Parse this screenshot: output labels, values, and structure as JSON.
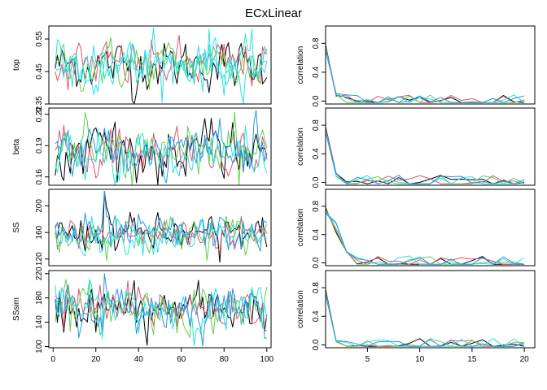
{
  "title": "ECxLinear",
  "colors": {
    "chain1": "#000000",
    "chain2": "#DF536B",
    "chain3": "#61D04F",
    "chain4": "#28E2E5",
    "chain5": "#2297E6"
  },
  "chart_data": [
    {
      "type": "line",
      "panel": "trace",
      "ylabel": "top",
      "ylim": [
        0.35,
        0.59
      ],
      "yticks": [
        0.35,
        0.45,
        0.55
      ],
      "ytick_labels": [
        "0.35",
        "0.45",
        "0.55"
      ],
      "xlim": [
        -2,
        102
      ],
      "n_iter": 100,
      "center": 0.47,
      "spread": 0.035,
      "peak": {
        "x": 73,
        "y": 0.58
      },
      "low": {
        "x": 37,
        "y": 0.36
      }
    },
    {
      "type": "line",
      "panel": "acf",
      "ylabel": "correlation",
      "ylim": [
        -0.04,
        1.04
      ],
      "yticks": [
        0.0,
        0.4,
        0.8
      ],
      "ytick_labels": [
        "0.0",
        "0.4",
        "0.8"
      ],
      "xlim": [
        1,
        21
      ],
      "lags": 20,
      "lag1": 0.08
    },
    {
      "type": "line",
      "panel": "trace",
      "ylabel": "beta",
      "ylim": [
        0.152,
        0.226
      ],
      "yticks": [
        0.16,
        0.19,
        0.22
      ],
      "ytick_labels": [
        "0.16",
        "0.19",
        "0.22"
      ],
      "xlim": [
        -2,
        102
      ],
      "n_iter": 100,
      "center": 0.183,
      "spread": 0.011,
      "peak": {
        "x": 95,
        "y": 0.224
      },
      "low": {
        "x": 30,
        "y": 0.155
      }
    },
    {
      "type": "line",
      "panel": "acf",
      "ylabel": "correlation",
      "ylim": [
        -0.04,
        1.04
      ],
      "yticks": [
        0.0,
        0.4,
        0.8
      ],
      "ytick_labels": [
        "0.0",
        "0.4",
        "0.8"
      ],
      "xlim": [
        1,
        21
      ],
      "lags": 20,
      "lag1": 0.1
    },
    {
      "type": "line",
      "panel": "trace",
      "ylabel": "SS",
      "ylim": [
        110,
        225
      ],
      "yticks": [
        120,
        160,
        200
      ],
      "ytick_labels": [
        "120",
        "160",
        "200"
      ],
      "xlim": [
        -2,
        102
      ],
      "n_iter": 100,
      "center": 157,
      "spread": 13,
      "peak": {
        "x": 24,
        "y": 222
      },
      "low": {
        "x": 78,
        "y": 115
      }
    },
    {
      "type": "line",
      "panel": "acf",
      "ylabel": "correlation",
      "ylim": [
        -0.04,
        1.04
      ],
      "yticks": [
        0.0,
        0.4,
        0.8
      ],
      "ytick_labels": [
        "0.0",
        "0.4",
        "0.8"
      ],
      "xlim": [
        1,
        21
      ],
      "lags": 20,
      "lag1": 0.45
    },
    {
      "type": "line",
      "panel": "trace",
      "ylabel": "SSsim",
      "ylim": [
        98,
        225
      ],
      "yticks": [
        100,
        140,
        180,
        220
      ],
      "ytick_labels": [
        "100",
        "140",
        "180",
        "220"
      ],
      "xlim": [
        -2,
        102
      ],
      "n_iter": 100,
      "center": 163,
      "spread": 18,
      "peak": {
        "x": 24,
        "y": 220
      },
      "low": {
        "x": 44,
        "y": 102
      },
      "xticks": [
        0,
        20,
        40,
        60,
        80,
        100
      ],
      "xtick_labels": [
        "0",
        "20",
        "40",
        "60",
        "80",
        "100"
      ]
    },
    {
      "type": "line",
      "panel": "acf",
      "ylabel": "correlation",
      "ylim": [
        -0.04,
        1.04
      ],
      "yticks": [
        0.0,
        0.4,
        0.8
      ],
      "ytick_labels": [
        "0.0",
        "0.4",
        "0.8"
      ],
      "xlim": [
        1,
        21
      ],
      "lags": 20,
      "lag1": 0.05,
      "xticks": [
        5,
        10,
        15,
        20
      ],
      "xtick_labels": [
        "5",
        "10",
        "15",
        "20"
      ]
    }
  ]
}
